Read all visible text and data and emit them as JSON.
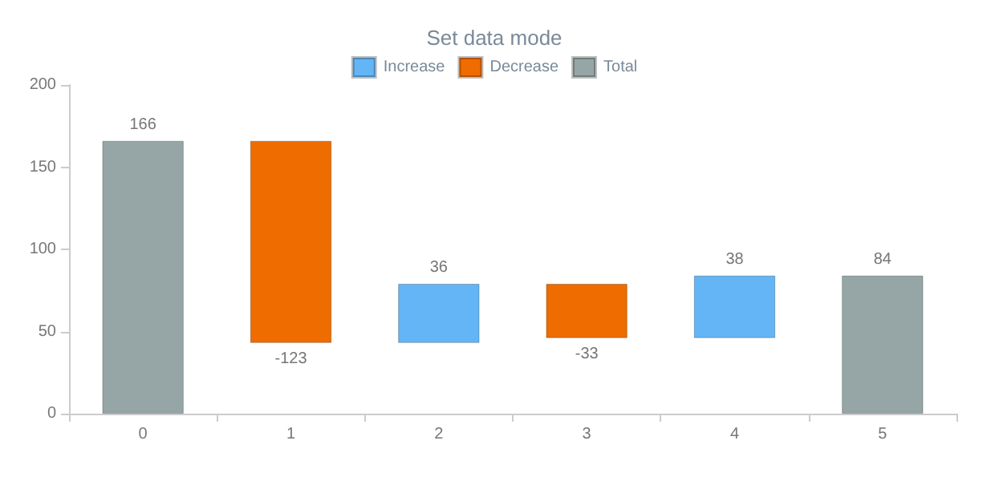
{
  "chart_data": {
    "type": "bar",
    "title": "Set data mode",
    "categories": [
      "0",
      "1",
      "2",
      "3",
      "4",
      "5"
    ],
    "series": [
      {
        "name": "Increase",
        "color": "#64b5f6",
        "values": [
          null,
          null,
          36,
          null,
          38,
          null
        ],
        "base": [
          null,
          null,
          43,
          null,
          46,
          null
        ]
      },
      {
        "name": "Decrease",
        "color": "#ef6c00",
        "values": [
          null,
          -123,
          null,
          -33,
          null,
          null
        ],
        "base": [
          null,
          166,
          null,
          79,
          null,
          null
        ]
      },
      {
        "name": "Total",
        "color": "#96a6a6",
        "values": [
          166,
          null,
          null,
          null,
          null,
          84
        ],
        "base": [
          0,
          null,
          null,
          null,
          null,
          0
        ]
      }
    ],
    "ylim": [
      0,
      200
    ],
    "yticks": [
      0,
      50,
      100,
      150,
      200
    ],
    "grid": false,
    "legend": "top",
    "data_labels": true
  }
}
